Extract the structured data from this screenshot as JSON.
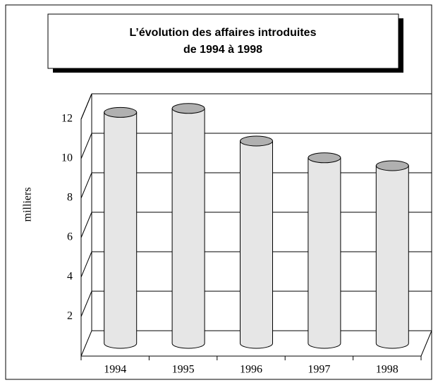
{
  "chart_data": {
    "type": "bar3d",
    "title": "L’évolution des affaires introduites",
    "subtitle": "de 1994 à 1998",
    "y_label": "milliers",
    "categories": [
      "1994",
      "1995",
      "1996",
      "1997",
      "1998"
    ],
    "values": [
      11.7,
      11.9,
      10.25,
      9.4,
      9.0
    ],
    "color": "#e6e6e6",
    "top_color": "#b0b0b0",
    "ylim": [
      0,
      12
    ],
    "yticks": [
      2,
      4,
      6,
      8,
      10,
      12
    ],
    "grid": true
  }
}
